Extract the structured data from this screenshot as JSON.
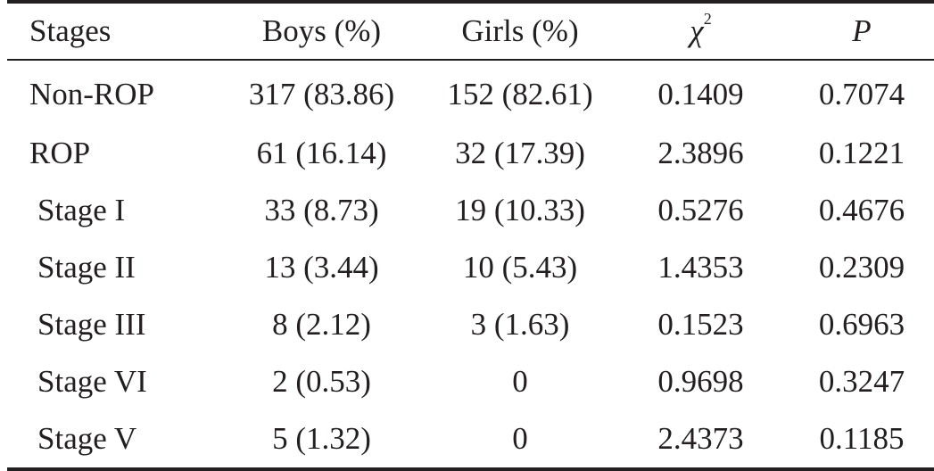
{
  "table": {
    "headers": {
      "stages": "Stages",
      "boys": "Boys (%)",
      "girls": "Girls (%)",
      "chi_symbol": "χ",
      "chi_exp": "2",
      "p": "P"
    },
    "rows": [
      {
        "stage": "Non-ROP",
        "boys": "317 (83.86)",
        "girls": "152 (82.61)",
        "chi2": "0.1409",
        "p": "0.7074"
      },
      {
        "stage": "ROP",
        "boys": "61 (16.14)",
        "girls": "32 (17.39)",
        "chi2": "2.3896",
        "p": "0.1221"
      },
      {
        "stage": "Stage I",
        "boys": "33 (8.73)",
        "girls": "19 (10.33)",
        "chi2": "0.5276",
        "p": "0.4676"
      },
      {
        "stage": "Stage II",
        "boys": "13 (3.44)",
        "girls": "10 (5.43)",
        "chi2": "1.4353",
        "p": "0.2309"
      },
      {
        "stage": "Stage III",
        "boys": "8 (2.12)",
        "girls": "3 (1.63)",
        "chi2": "0.1523",
        "p": "0.6963"
      },
      {
        "stage": "Stage VI",
        "boys": "2 (0.53)",
        "girls": "0",
        "chi2": "0.9698",
        "p": "0.3247"
      },
      {
        "stage": "Stage V",
        "boys": "5 (1.32)",
        "girls": "0",
        "chi2": "2.4373",
        "p": "0.1185"
      }
    ]
  }
}
